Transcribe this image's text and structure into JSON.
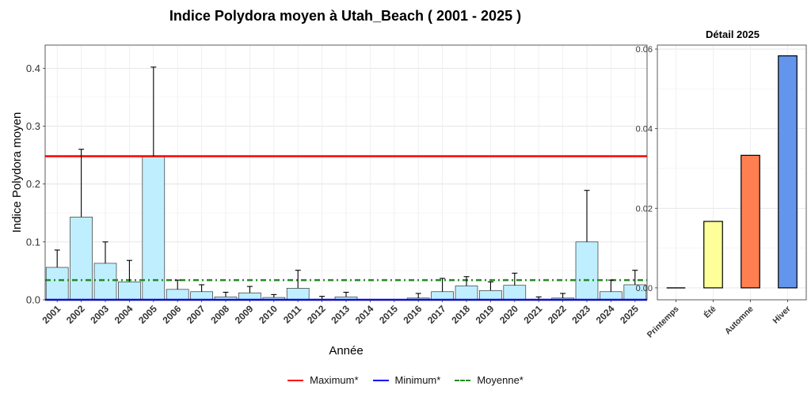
{
  "chart_data": [
    {
      "type": "bar",
      "title": "Indice Polydora moyen à Utah_Beach ( 2001 - 2025 )",
      "xlabel": "Année",
      "ylabel": "Indice Polydora moyen",
      "ylim": [
        0,
        0.44
      ],
      "yticks": [
        0.0,
        0.1,
        0.2,
        0.3,
        0.4
      ],
      "ytick_labels": [
        "0.0",
        "0.1",
        "0.2",
        "0.3",
        "0.4"
      ],
      "grid": true,
      "categories": [
        "2001",
        "2002",
        "2003",
        "2004",
        "2005",
        "2006",
        "2007",
        "2008",
        "2009",
        "2010",
        "2011",
        "2012",
        "2013",
        "2014",
        "2015",
        "2016",
        "2017",
        "2018",
        "2019",
        "2020",
        "2021",
        "2022",
        "2023",
        "2024",
        "2025"
      ],
      "values": [
        0.056,
        0.143,
        0.063,
        0.031,
        0.248,
        0.018,
        0.014,
        0.005,
        0.012,
        0.004,
        0.02,
        0.001,
        0.005,
        0.0,
        0.0,
        0.003,
        0.014,
        0.024,
        0.016,
        0.025,
        0.001,
        0.003,
        0.1,
        0.014,
        0.026
      ],
      "error_upper": [
        0.086,
        0.26,
        0.1,
        0.068,
        0.402,
        0.034,
        0.026,
        0.013,
        0.023,
        0.009,
        0.051,
        0.006,
        0.013,
        null,
        null,
        0.011,
        0.037,
        0.04,
        0.031,
        0.046,
        0.005,
        0.011,
        0.189,
        0.034,
        0.051
      ],
      "bar_color": "#BFEFFF",
      "reference_lines": [
        {
          "name": "Maximum*",
          "value": 0.248,
          "color": "#FF0000",
          "style": "solid"
        },
        {
          "name": "Minimum*",
          "value": 0.0,
          "color": "#0000FF",
          "style": "solid"
        },
        {
          "name": "Moyenne*",
          "value": 0.034,
          "color": "#228B22",
          "style": "dashdot"
        }
      ],
      "legend_position": "bottom"
    },
    {
      "type": "bar",
      "title": "Détail 2025",
      "categories": [
        "Printemps",
        "Été",
        "Automne",
        "Hiver"
      ],
      "values": [
        0.0,
        0.0167,
        0.0333,
        0.0583
      ],
      "colors": [
        "#000000",
        "#FFFF99",
        "#FF7F50",
        "#6495ED"
      ],
      "ylim": [
        -0.003,
        0.061
      ],
      "yticks": [
        0.0,
        0.02,
        0.04,
        0.06
      ],
      "ytick_labels": [
        "0.00",
        "0.02",
        "0.04",
        "0.06"
      ],
      "grid": true
    }
  ]
}
